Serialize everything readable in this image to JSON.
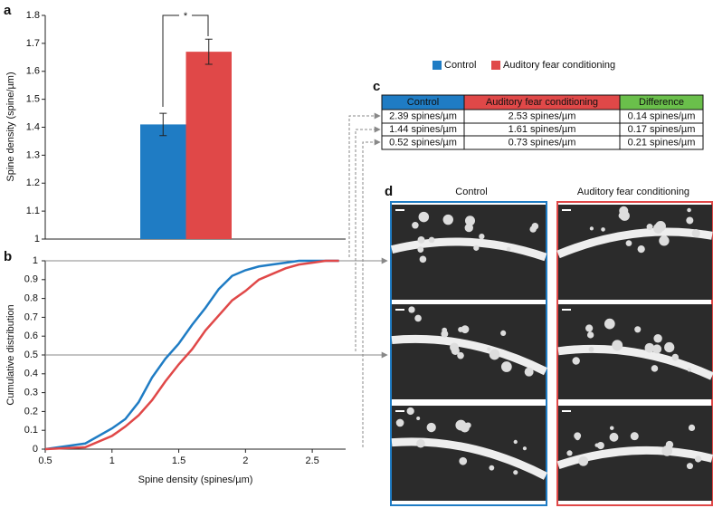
{
  "panel_labels": [
    "a",
    "b",
    "c",
    "d"
  ],
  "chart_data": [
    {
      "type": "bar",
      "ylabel": "Spine density (spine/µm)",
      "annotation": "*",
      "categories": [
        null
      ],
      "ylim": [
        1,
        1.8
      ],
      "yticks": [
        1,
        1.1,
        1.2,
        1.3,
        1.4,
        1.5,
        1.6,
        1.7,
        1.8
      ],
      "series": [
        {
          "name": "Control",
          "color": "#1f7cc4",
          "values": [
            1.41
          ],
          "errors": [
            0.04
          ]
        },
        {
          "name": "Auditory fear conditioning",
          "color": "#e04848",
          "values": [
            1.67
          ],
          "errors": [
            0.045
          ]
        }
      ]
    },
    {
      "type": "line",
      "xlabel": "Spine density (spines/µm)",
      "ylabel": "Cumulative distribution",
      "x": [
        0.5,
        0.8,
        1.0,
        1.1,
        1.2,
        1.3,
        1.4,
        1.5,
        1.6,
        1.7,
        1.8,
        1.9,
        2.0,
        2.1,
        2.2,
        2.3,
        2.4,
        2.5,
        2.6,
        2.7
      ],
      "xlim": [
        0.5,
        2.75
      ],
      "xticks": [
        0.5,
        1,
        1.5,
        2,
        2.5
      ],
      "ylim": [
        0,
        1
      ],
      "yticks": [
        0,
        0.1,
        0.2,
        0.3,
        0.4,
        0.5,
        0.6,
        0.7,
        0.8,
        0.9,
        1
      ],
      "series": [
        {
          "color": "#1f7cc4",
          "values": [
            0,
            0.03,
            0.11,
            0.16,
            0.25,
            0.38,
            0.48,
            0.56,
            0.66,
            0.75,
            0.85,
            0.92,
            0.95,
            0.97,
            0.98,
            0.99,
            1.0,
            1.0,
            1.0,
            1.0
          ]
        },
        {
          "color": "#e04848",
          "values": [
            0,
            0.01,
            0.07,
            0.12,
            0.18,
            0.26,
            0.36,
            0.45,
            0.53,
            0.63,
            0.71,
            0.79,
            0.84,
            0.9,
            0.93,
            0.96,
            0.98,
            0.99,
            1.0,
            1.0
          ]
        }
      ]
    }
  ],
  "table": {
    "header": [
      "Control",
      "Auditory fear conditioning",
      "Difference"
    ],
    "rows": [
      [
        "2.39 spines/µm",
        "2.53 spines/µm",
        "0.14 spines/µm"
      ],
      [
        "1.44 spines/µm",
        "1.61 spines/µm",
        "0.17 spines/µm"
      ],
      [
        "0.52 spines/µm",
        "0.73 spines/µm",
        "0.21 spines/µm"
      ]
    ]
  },
  "images": {
    "titles": [
      "Control",
      "Auditory fear conditioning"
    ]
  }
}
